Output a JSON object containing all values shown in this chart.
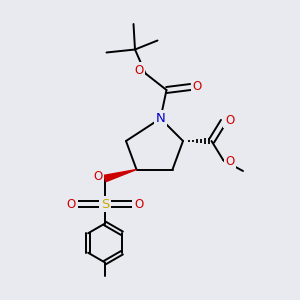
{
  "bg_color": "#e8eaf0",
  "atom_colors": {
    "C": "#1a1a1a",
    "N": "#0000cc",
    "O": "#cc0000",
    "S": "#ccaa00"
  },
  "lw": 1.4,
  "fs": 8.5,
  "fig_bg": "#e8eaf0",
  "xlim": [
    0,
    10
  ],
  "ylim": [
    0,
    10
  ]
}
